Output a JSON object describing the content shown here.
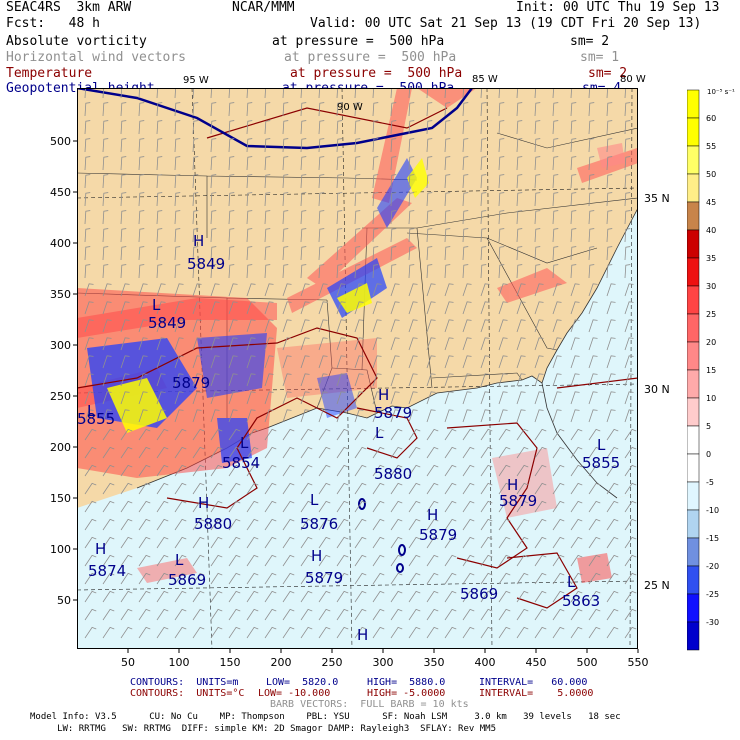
{
  "header": {
    "project": "SEAC4RS  3km ARW",
    "org": "NCAR/MMM",
    "init": "Init: 00 UTC Thu 19 Sep 13",
    "fcst": "Fcst:   48 h",
    "valid": "Valid: 00 UTC Sat 21 Sep 13 (19 CDT Fri 20 Sep 13)"
  },
  "fields": [
    {
      "name": "Absolute vorticity",
      "level": "at pressure =  500 hPa",
      "sm": "sm= 2",
      "color": "#000000"
    },
    {
      "name": "Horizontal wind vectors",
      "level": "at pressure =  500 hPa",
      "sm": "sm= 1",
      "color": "#909090"
    },
    {
      "name": "Temperature",
      "level": "at pressure =  500 hPa",
      "sm": "sm= 2",
      "color": "#8b0000"
    },
    {
      "name": "Geopotential height",
      "level": "at pressure =  500 hPa",
      "sm": "sm= 4",
      "color": "#00008b"
    }
  ],
  "axes": {
    "x_ticks": [
      "50",
      "100",
      "150",
      "200",
      "250",
      "300",
      "350",
      "400",
      "450",
      "500",
      "550"
    ],
    "y_ticks": [
      "500",
      "450",
      "400",
      "350",
      "300",
      "250",
      "200",
      "150",
      "100",
      "50"
    ],
    "lon_labels": [
      "95 W",
      "90 W",
      "85 W",
      "80 W"
    ],
    "lat_labels": [
      "35 N",
      "30 N",
      "25 N"
    ]
  },
  "colorbar": {
    "unit": "10⁻⁵ s⁻¹",
    "labels": [
      "60",
      "55",
      "50",
      "45",
      "40",
      "35",
      "30",
      "25",
      "20",
      "15",
      "10",
      "5",
      "0",
      "-5",
      "-10",
      "-15",
      "-20",
      "-25",
      "-30"
    ],
    "colors": [
      "#ffff00",
      "#ffff00",
      "#ffff66",
      "#ffee88",
      "#c8844a",
      "#cc0000",
      "#ee1111",
      "#ff4444",
      "#ff6666",
      "#ff8888",
      "#ffaaaa",
      "#ffcccc",
      "#ffffff",
      "#ffffff",
      "#e0f6ff",
      "#b0d4f0",
      "#7090e0",
      "#3050f0",
      "#1010ff",
      "#0000cc"
    ]
  },
  "map": {
    "high_labels": [
      "H",
      "H",
      "H",
      "H",
      "H",
      "H",
      "H",
      "H"
    ],
    "low_labels": [
      "L",
      "L",
      "L",
      "L",
      "L",
      "L",
      "L",
      "L"
    ],
    "height_values": [
      "5849",
      "5849",
      "5879",
      "5880",
      "5880",
      "5876",
      "5879",
      "5879",
      "5874",
      "5869",
      "5869",
      "5863",
      "5879",
      "5855",
      "5854"
    ],
    "colors": {
      "land": "#f5d9a8",
      "sea": "#dff6fb",
      "height": "#00008b",
      "temp": "#8b0000",
      "vort_pos": "#ff4040",
      "vort_neg": "#2040ff",
      "barb": "#909090"
    }
  },
  "footer": {
    "contours_height": [
      "CONTOURS:  UNITS=m",
      "LOW=  5820.0",
      "HIGH=  5880.0",
      "INTERVAL=   60.000"
    ],
    "contours_temp": [
      "CONTOURS:  UNITS=°C",
      "LOW= -10.000",
      "HIGH= -5.0000",
      "INTERVAL=    5.0000"
    ],
    "barb": "BARB VECTORS:  FULL BARB = 10 kts",
    "model1": "Model Info: V3.5      CU: No Cu    MP: Thompson    PBL: YSU      SF: Noah LSM     3.0 km   39 levels   18 sec",
    "model2": "     LW: RRTMG   SW: RRTMG  DIFF: simple KM: 2D Smagor DAMP: Rayleigh3  SFLAY: Rev MM5"
  }
}
